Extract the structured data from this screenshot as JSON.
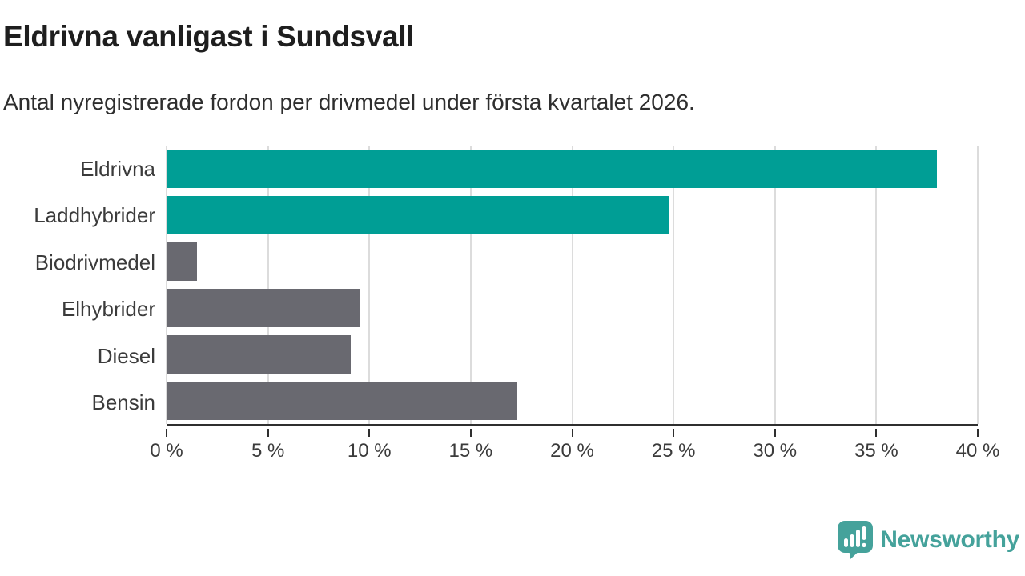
{
  "chart_data": {
    "type": "bar",
    "orientation": "horizontal",
    "title": "Eldrivna vanligast i Sundsvall",
    "subtitle": "Antal nyregistrerade fordon per drivmedel under första kvartalet 2026.",
    "categories": [
      "Eldrivna",
      "Laddhybrider",
      "Biodrivmedel",
      "Elhybrider",
      "Diesel",
      "Bensin"
    ],
    "values": [
      38.0,
      24.8,
      1.5,
      9.5,
      9.1,
      17.3
    ],
    "unit": "%",
    "bar_colors": [
      "#009e95",
      "#009e95",
      "#696970",
      "#696970",
      "#696970",
      "#696970"
    ],
    "accent_color": "#009e95",
    "neutral_color": "#696970",
    "xlim": [
      0,
      40
    ],
    "x_ticks": [
      0,
      5,
      10,
      15,
      20,
      25,
      30,
      35,
      40
    ],
    "x_tick_labels": [
      "0 %",
      "5 %",
      "10 %",
      "15 %",
      "20 %",
      "25 %",
      "30 %",
      "35 %",
      "40 %"
    ],
    "grid": "vertical",
    "gridline_color": "#dcdcdc",
    "axis_color": "#2f2f2f",
    "legend": false
  },
  "footer": {
    "brand": "Newsworthy",
    "brand_color": "#45a29b",
    "logo_icon": "newsworthy-speech-bubble-bar-chart-icon"
  }
}
